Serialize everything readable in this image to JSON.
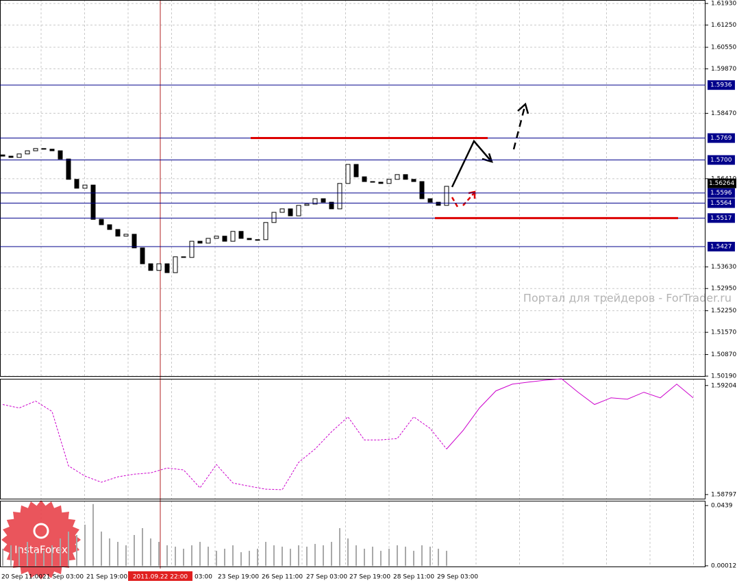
{
  "watermark": "Портал для трейдеров - ForTrader.ru",
  "logo": "InstaForex",
  "cursor_time": "2011.09.22 22:00",
  "chart_data": [
    {
      "type": "candlestick",
      "color": "#000000",
      "grid": true,
      "open": [
        1.5716,
        1.5712,
        1.5708,
        1.5719,
        1.5729,
        1.5736,
        1.5734,
        1.5729,
        1.5703,
        1.5639,
        1.5611,
        1.5621,
        1.5513,
        1.5496,
        1.5481,
        1.546,
        1.5466,
        1.5423,
        1.5373,
        1.5352,
        1.5373,
        1.5345,
        1.5395,
        1.5393,
        1.5444,
        1.5438,
        1.5453,
        1.546,
        1.5444,
        1.5475,
        1.5453,
        1.5449,
        1.5449,
        1.5503,
        1.5535,
        1.5546,
        1.5524,
        1.5557,
        1.5561,
        1.5578,
        1.5567,
        1.5546,
        1.5626,
        1.5686,
        1.5647,
        1.5632,
        1.563,
        1.5626,
        1.5639,
        1.5654,
        1.5639,
        1.5632,
        1.5578,
        1.5567,
        1.5557
      ],
      "close": [
        1.5712,
        1.5708,
        1.5719,
        1.5729,
        1.5736,
        1.5734,
        1.5729,
        1.5703,
        1.5639,
        1.5611,
        1.5621,
        1.5513,
        1.5496,
        1.5481,
        1.546,
        1.5466,
        1.5423,
        1.5373,
        1.5352,
        1.5373,
        1.5345,
        1.5395,
        1.5393,
        1.5444,
        1.5438,
        1.5453,
        1.546,
        1.5444,
        1.5475,
        1.5453,
        1.5449,
        1.5449,
        1.5503,
        1.5535,
        1.5546,
        1.5524,
        1.5557,
        1.5561,
        1.5578,
        1.5567,
        1.5546,
        1.5626,
        1.5686,
        1.5647,
        1.5632,
        1.563,
        1.5626,
        1.5639,
        1.5654,
        1.5639,
        1.5632,
        1.5578,
        1.5567,
        1.5557,
        1.5617
      ],
      "levels": [
        1.5936,
        1.5769,
        {
          "value": 1.57,
          "label": "1.5700"
        },
        1.5596,
        1.5564,
        1.5517,
        1.5427
      ],
      "current_price": 1.56264,
      "ylim": [
        1.5017,
        1.6204
      ],
      "yticks": [
        {
          "value": 1.6193,
          "label": "1.61930"
        },
        {
          "value": 1.6125,
          "label": "1.61250"
        },
        {
          "value": 1.6055,
          "label": "1.60550"
        },
        {
          "value": 1.5987,
          "label": "1.59870"
        },
        {
          "value": 1.5847,
          "label": "1.58470"
        },
        {
          "value": 1.5641,
          "label": "1.56410"
        },
        {
          "value": 1.5363,
          "label": "1.53630"
        },
        {
          "value": 1.5295,
          "label": "1.52950"
        },
        {
          "value": 1.5225,
          "label": "1.52250"
        },
        {
          "value": 1.5157,
          "label": "1.51570"
        },
        {
          "value": 1.5087,
          "label": "1.50870"
        },
        {
          "value": 1.5019,
          "label": "1.50190"
        }
      ],
      "x_labels": [
        "20 Sep 11:00",
        "21 Sep 03:00",
        "21 Sep 19:00",
        "03:00",
        "23 Sep 19:00",
        "26 Sep 11:00",
        "27 Sep 03:00",
        "27 Sep 19:00",
        "28 Sep 11:00",
        "29 Sep 03:00"
      ]
    },
    {
      "type": "line",
      "ylim": [
        1.58779,
        1.59229
      ],
      "yticks": [
        1.59204,
        1.58797
      ],
      "series": [
        {
          "color": "#cc00cc",
          "style": "dashed",
          "values": [
            1.59133,
            1.5912,
            1.59146,
            1.59107,
            1.58904,
            1.58866,
            1.58843,
            1.58863,
            1.58873,
            1.58878,
            1.58896,
            1.58889,
            1.58822,
            1.58909,
            1.5884,
            1.58828,
            1.58817,
            1.58815,
            1.58917,
            1.58967,
            1.59031,
            1.59087,
            1.59001,
            1.59001,
            1.59006,
            1.59087,
            1.59044,
            1.58967,
            null,
            null,
            null,
            null,
            null,
            null,
            null,
            null,
            null,
            null,
            null,
            null,
            null,
            null,
            null
          ]
        },
        {
          "color": "#cc00cc",
          "style": "solid",
          "values": [
            null,
            null,
            null,
            null,
            null,
            null,
            null,
            null,
            null,
            null,
            null,
            null,
            null,
            null,
            null,
            null,
            null,
            null,
            null,
            null,
            null,
            null,
            null,
            null,
            null,
            null,
            null,
            1.58967,
            1.59036,
            1.5912,
            1.59184,
            1.59209,
            1.59217,
            1.59224,
            1.59229,
            1.59179,
            1.59133,
            1.59158,
            1.59153,
            1.59179,
            1.59158,
            1.59209,
            1.59158
          ]
        }
      ]
    },
    {
      "type": "bar",
      "color": "#a8a8a8",
      "ylim": [
        -0.0009,
        0.0474
      ],
      "yticks": [
        0.0439,
        0.000127
      ],
      "values": [
        0.0125,
        0.015,
        0.014,
        0.0175,
        0.01,
        0.011,
        0.015,
        0.02,
        0.025,
        0.0225,
        0.03,
        0.045,
        0.025,
        0.02,
        0.0175,
        0.015,
        0.0225,
        0.0275,
        0.02,
        0.0175,
        0.015,
        0.014,
        0.0125,
        0.015,
        0.0175,
        0.014,
        0.011,
        0.0125,
        0.015,
        0.01,
        0.011,
        0.0125,
        0.0175,
        0.015,
        0.014,
        0.0125,
        0.015,
        0.014,
        0.016,
        0.015,
        0.0175,
        0.0275,
        0.02,
        0.015,
        0.0125,
        0.014,
        0.011,
        0.0125,
        0.015,
        0.014,
        0.011,
        0.015,
        0.014,
        0.0125,
        0.011
      ]
    }
  ]
}
